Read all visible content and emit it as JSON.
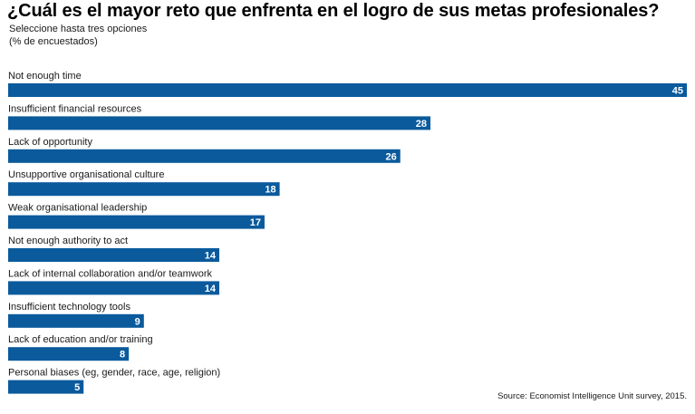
{
  "chart_data": {
    "type": "bar",
    "orientation": "horizontal",
    "title": "¿Cuál es el mayor reto que enfrenta en el logro de sus metas profesionales?",
    "subtitle": "Seleccione hasta tres opciones",
    "unit_note": "(% de encuestados)",
    "categories": [
      "Not enough time",
      "Insufficient financial resources",
      "Lack of opportunity",
      "Unsupportive organisational culture",
      "Weak organisational leadership",
      "Not enough authority to act",
      "Lack of internal collaboration and/or teamwork",
      "Insufficient technology tools",
      "Lack of education and/or training",
      "Personal biases (eg, gender, race, age, religion)"
    ],
    "values": [
      45,
      28,
      26,
      18,
      17,
      14,
      14,
      9,
      8,
      5
    ],
    "xlim": [
      0,
      45
    ],
    "bar_color": "#0a5a9c",
    "value_label_color": "#ffffff",
    "grid": false,
    "legend": "none",
    "source": "Source: Economist Intelligence Unit survey, 2015."
  }
}
